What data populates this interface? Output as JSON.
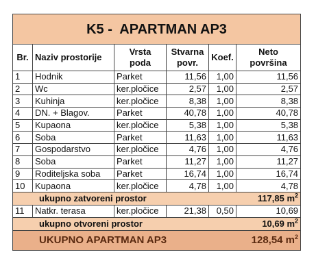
{
  "title": "K5 -  APARTMAN AP3",
  "header": [
    [
      "Br."
    ],
    [
      "Naziv prostorije"
    ],
    [
      "Vrsta",
      "poda"
    ],
    [
      "Stvarna",
      "povr."
    ],
    [
      "Koef."
    ],
    [
      "Neto",
      "površina"
    ]
  ],
  "rows": [
    [
      "1",
      "Hodnik",
      "Parket",
      "11,56",
      "1,00",
      "11,56"
    ],
    [
      "2",
      "Wc",
      "ker.pločice",
      "2,57",
      "1,00",
      "2,57"
    ],
    [
      "3",
      "Kuhinja",
      "ker.pločice",
      "8,38",
      "1,00",
      "8,38"
    ],
    [
      "4",
      "DN. + Blagov.",
      "Parket",
      "40,78",
      "1,00",
      "40,78"
    ],
    [
      "5",
      "Kupaona",
      "ker.pločice",
      "5,38",
      "1,00",
      "5,38"
    ],
    [
      "6",
      "Soba",
      "Parket",
      "11,63",
      "1,00",
      "11,63"
    ],
    [
      "7",
      "Gospodarstvo",
      "ker.pločice",
      "4,76",
      "1,00",
      "4,76"
    ],
    [
      "8",
      "Soba",
      "Parket",
      "11,27",
      "1,00",
      "11,27"
    ],
    [
      "9",
      "Roditeljska soba",
      "Parket",
      "16,74",
      "1,00",
      "16,74"
    ],
    [
      "10",
      "Kupaona",
      "ker.pločice",
      "4,78",
      "1,00",
      "4,78"
    ]
  ],
  "closed_total": {
    "label": "ukupno zatvoreni prostor",
    "value": "117,85 m",
    "exp": "2"
  },
  "open_rows": [
    [
      "11",
      "Natkr. terasa",
      "ker.pločice",
      "21,38",
      "0,50",
      "10,69"
    ]
  ],
  "open_total": {
    "label": "ukupno otvoreni prostor",
    "value": "10,69 m",
    "exp": "2"
  },
  "grand_total": {
    "label": "UKUPNO APARTMAN AP3",
    "value": "128,54 m",
    "exp": "2"
  }
}
